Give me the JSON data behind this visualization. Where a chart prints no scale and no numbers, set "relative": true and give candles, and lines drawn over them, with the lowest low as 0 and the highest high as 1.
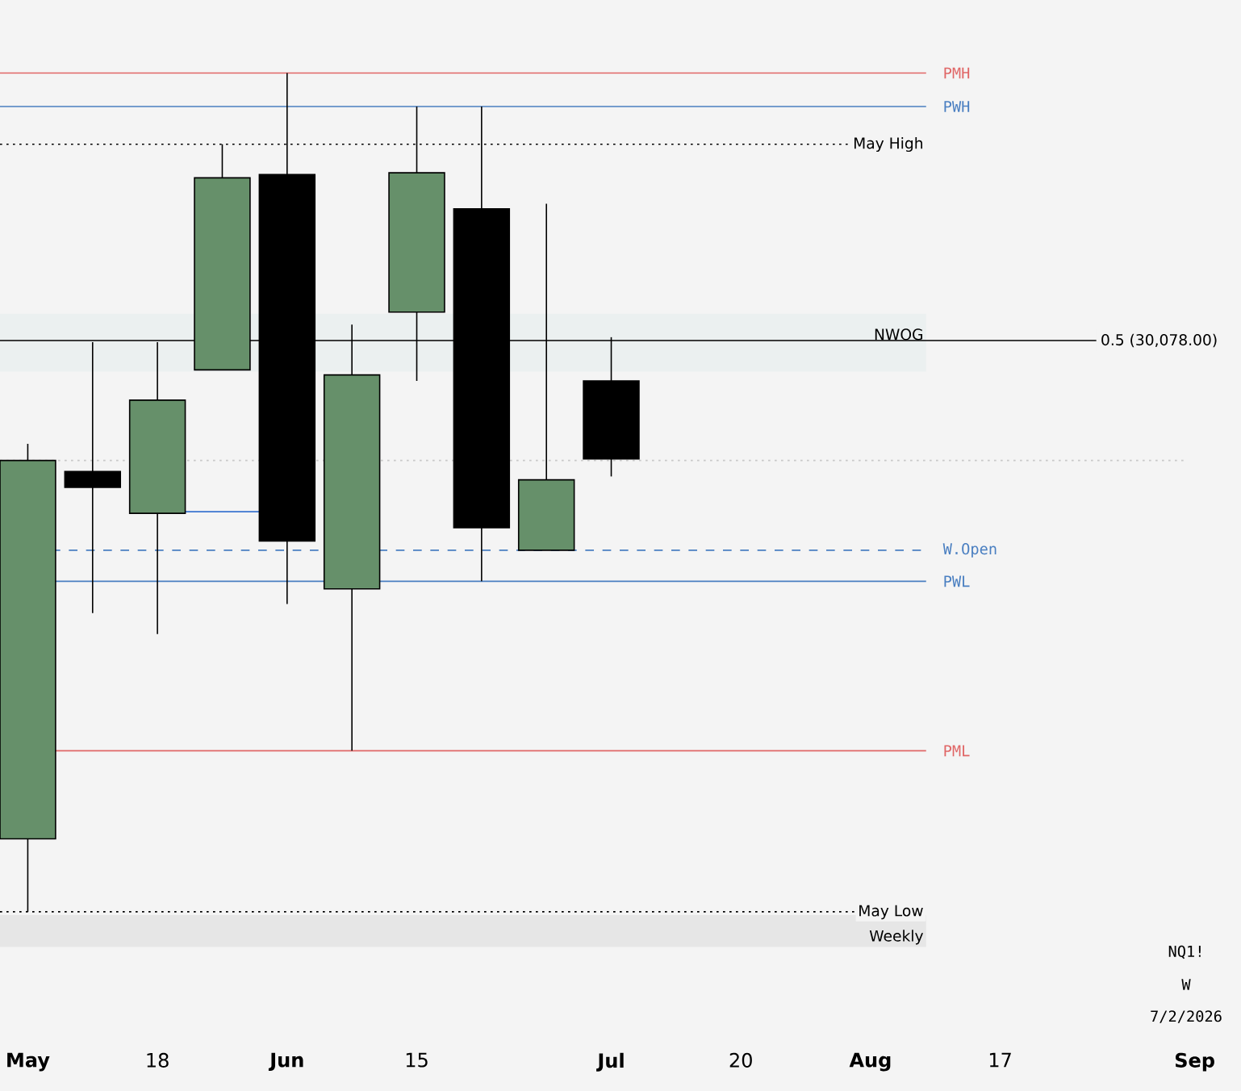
{
  "chart_data": {
    "type": "candlestick",
    "relative": true,
    "x": [
      "2026-05-04",
      "2026-05-11",
      "2026-05-18",
      "2026-05-25",
      "2026-06-01",
      "2026-06-08",
      "2026-06-15",
      "2026-06-22",
      "2026-06-29",
      "2026-07-06"
    ],
    "ohlc": [
      [
        0.087,
        0.558,
        0,
        0.538
      ],
      [
        0.525,
        0.679,
        0.356,
        0.506
      ],
      [
        0.475,
        0.679,
        0.331,
        0.61
      ],
      [
        0.646,
        0.915,
        0.646,
        0.875
      ],
      [
        0.879,
        1,
        0.367,
        0.442
      ],
      [
        0.385,
        0.7,
        0.192,
        0.64
      ],
      [
        0.715,
        0.96,
        0.633,
        0.881
      ],
      [
        0.838,
        0.96,
        0.394,
        0.458
      ],
      [
        0.431,
        0.844,
        0.431,
        0.515
      ],
      [
        0.633,
        0.685,
        0.519,
        0.54
      ]
    ],
    "colors": [
      "#66906a",
      "#000000",
      "#66906a",
      "#66906a",
      "#000000",
      "#66906a",
      "#66906a",
      "#000000",
      "#66906a",
      "#000000"
    ],
    "xlim": [
      "2026-05-01",
      "2026-09-12"
    ],
    "xticks": [
      {
        "value": "2026-05-04",
        "label": "May"
      },
      {
        "value": "2026-05-18",
        "label": "18"
      },
      {
        "value": "2026-06-01",
        "label": "Jun"
      },
      {
        "value": "2026-06-15",
        "label": "15"
      },
      {
        "value": "2026-07-06",
        "label": "Jul"
      },
      {
        "value": "2026-07-20",
        "label": "20"
      },
      {
        "value": "2026-08-03",
        "label": "Aug"
      },
      {
        "value": "2026-08-17",
        "label": "17"
      },
      {
        "value": "2026-09-07",
        "label": "Sep"
      }
    ],
    "tick_labels": "x",
    "grid": false,
    "bands": [
      {
        "axis": "y",
        "from": 0.644,
        "to": 0.713,
        "label": "NWOG",
        "color": "#ebf0f0"
      },
      {
        "axis": "y",
        "from": -0.042,
        "to": -0.004,
        "label": "Weekly",
        "color": "#e6e6e6"
      }
    ],
    "ref_lines": [
      {
        "axis": "y",
        "value": 1,
        "label": "PMH",
        "color": "#e06666",
        "line_style": "solid"
      },
      {
        "axis": "y",
        "value": 0.96,
        "label": "PWH",
        "color": "#4a7fc1",
        "line_style": "solid"
      },
      {
        "axis": "y",
        "value": 0.915,
        "label": "May High",
        "color": "#000000",
        "line_style": "dotted"
      },
      {
        "axis": "y",
        "value": 0.681,
        "color": "#000000",
        "line_style": "solid"
      },
      {
        "axis": "y",
        "value": 0.538,
        "color": "#c8c8c8",
        "line_style": "dotted"
      },
      {
        "axis": "y",
        "value": 0.477,
        "color": "#3a74d0",
        "line_style": "solid"
      },
      {
        "axis": "y",
        "value": 0.431,
        "label": "W.Open",
        "color": "#4a7fc1",
        "line_style": "dashed"
      },
      {
        "axis": "y",
        "value": 0.394,
        "label": "PWL",
        "color": "#4a7fc1",
        "line_style": "solid"
      },
      {
        "axis": "y",
        "value": 0.192,
        "label": "PML",
        "color": "#e06666",
        "line_style": "solid"
      },
      {
        "axis": "y",
        "value": 0,
        "label": "May Low",
        "color": "#000000",
        "line_style": "dotted"
      }
    ],
    "annotations": [
      {
        "text": "0.5 (30,078.00)",
        "y": 0.681
      },
      "NQ1!",
      "W",
      "7/2/2026"
    ]
  }
}
